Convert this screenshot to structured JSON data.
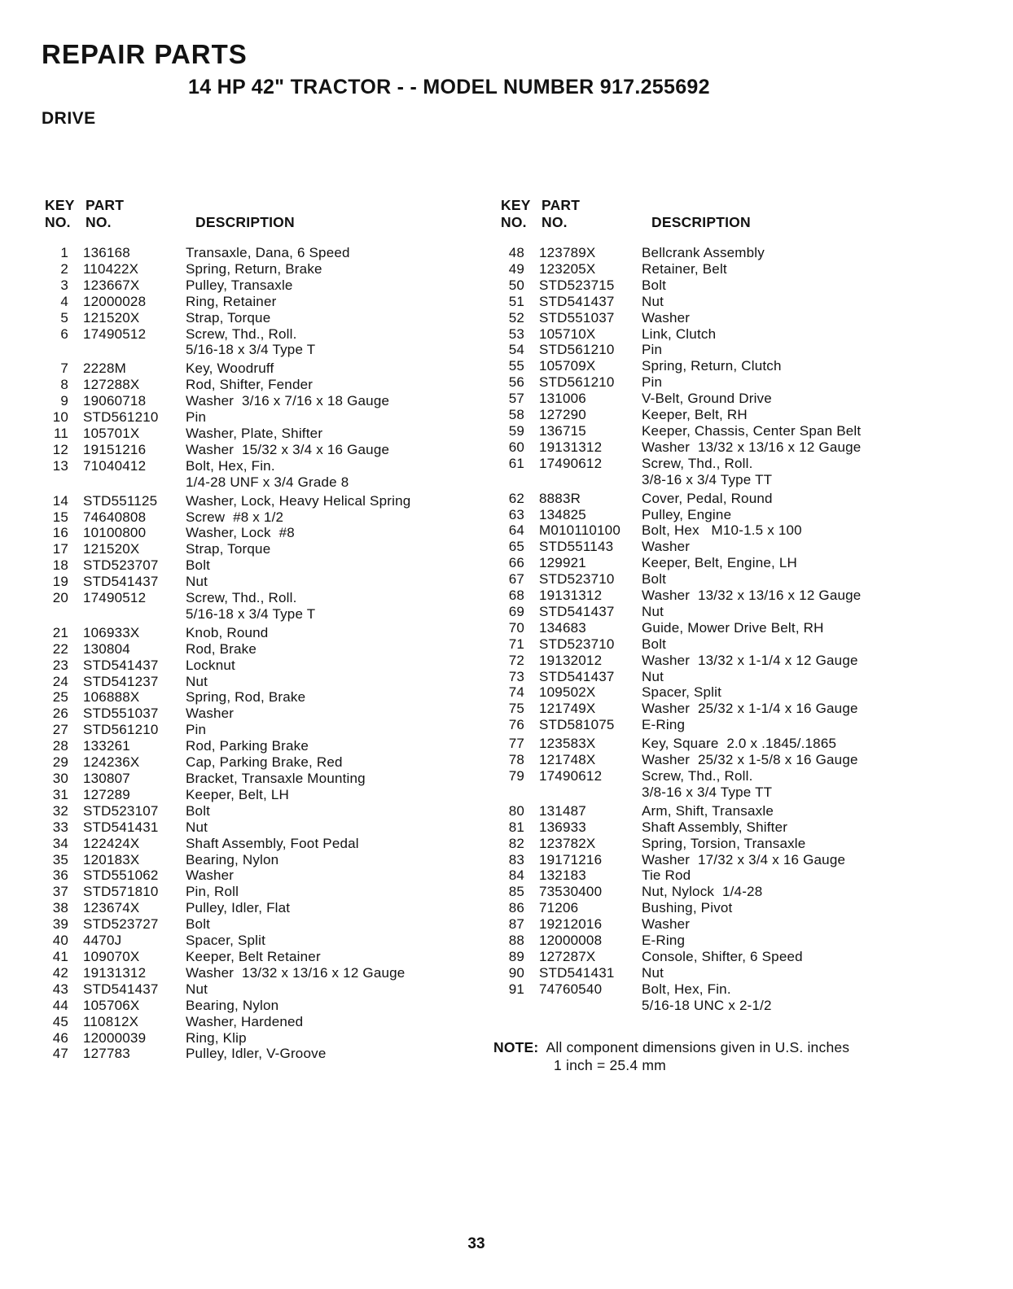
{
  "header": {
    "title": "REPAIR PARTS",
    "subtitle": "14 HP 42\" TRACTOR - - MODEL NUMBER 917.255692",
    "section": "DRIVE"
  },
  "table_headers": {
    "key": "KEY",
    "part": "PART",
    "no": "NO.",
    "no2": "NO.",
    "description": "DESCRIPTION"
  },
  "parts_left": [
    {
      "key": "1",
      "part": "136168",
      "desc": [
        "Transaxle, Dana, 6 Speed"
      ]
    },
    {
      "key": "2",
      "part": "110422X",
      "desc": [
        "Spring, Return, Brake"
      ]
    },
    {
      "key": "3",
      "part": "123667X",
      "desc": [
        "Pulley, Transaxle"
      ]
    },
    {
      "key": "4",
      "part": "12000028",
      "desc": [
        "Ring, Retainer"
      ]
    },
    {
      "key": "5",
      "part": "121520X",
      "desc": [
        "Strap, Torque"
      ]
    },
    {
      "key": "6",
      "part": "17490512",
      "desc": [
        "Screw, Thd., Roll.",
        "5/16-18 x 3/4 Type T"
      ]
    },
    {
      "key": "7",
      "part": "2228M",
      "desc": [
        "Key, Woodruff"
      ],
      "gap": true
    },
    {
      "key": "8",
      "part": "127288X",
      "desc": [
        "Rod, Shifter, Fender"
      ]
    },
    {
      "key": "9",
      "part": "19060718",
      "desc": [
        "Washer  3/16 x 7/16 x 18 Gauge"
      ]
    },
    {
      "key": "10",
      "part": "STD561210",
      "desc": [
        "Pin"
      ]
    },
    {
      "key": "11",
      "part": "105701X",
      "desc": [
        "Washer, Plate, Shifter"
      ]
    },
    {
      "key": "12",
      "part": "19151216",
      "desc": [
        "Washer  15/32 x 3/4 x 16 Gauge"
      ]
    },
    {
      "key": "13",
      "part": "71040412",
      "desc": [
        "Bolt, Hex, Fin.",
        "1/4-28 UNF x 3/4 Grade 8"
      ]
    },
    {
      "key": "14",
      "part": "STD551125",
      "desc": [
        "Washer, Lock, Heavy Helical Spring"
      ],
      "gap": true
    },
    {
      "key": "15",
      "part": "74640808",
      "desc": [
        "Screw  #8 x 1/2"
      ]
    },
    {
      "key": "16",
      "part": "10100800",
      "desc": [
        "Washer, Lock  #8"
      ]
    },
    {
      "key": "17",
      "part": "121520X",
      "desc": [
        "Strap, Torque"
      ]
    },
    {
      "key": "18",
      "part": "STD523707",
      "desc": [
        "Bolt"
      ]
    },
    {
      "key": "19",
      "part": "STD541437",
      "desc": [
        "Nut"
      ]
    },
    {
      "key": "20",
      "part": "17490512",
      "desc": [
        "Screw, Thd., Roll.",
        "5/16-18 x 3/4 Type T"
      ]
    },
    {
      "key": "21",
      "part": "106933X",
      "desc": [
        "Knob, Round"
      ],
      "gap": true
    },
    {
      "key": "22",
      "part": "130804",
      "desc": [
        "Rod, Brake"
      ]
    },
    {
      "key": "23",
      "part": "STD541437",
      "desc": [
        "Locknut"
      ]
    },
    {
      "key": "24",
      "part": "STD541237",
      "desc": [
        "Nut"
      ]
    },
    {
      "key": "25",
      "part": "106888X",
      "desc": [
        "Spring, Rod, Brake"
      ]
    },
    {
      "key": "26",
      "part": "STD551037",
      "desc": [
        "Washer"
      ]
    },
    {
      "key": "27",
      "part": "STD561210",
      "desc": [
        "Pin"
      ]
    },
    {
      "key": "28",
      "part": "133261",
      "desc": [
        "Rod, Parking Brake"
      ]
    },
    {
      "key": "29",
      "part": "124236X",
      "desc": [
        "Cap, Parking Brake, Red"
      ]
    },
    {
      "key": "30",
      "part": "130807",
      "desc": [
        "Bracket, Transaxle Mounting"
      ]
    },
    {
      "key": "31",
      "part": "127289",
      "desc": [
        "Keeper, Belt, LH"
      ]
    },
    {
      "key": "32",
      "part": "STD523107",
      "desc": [
        "Bolt"
      ]
    },
    {
      "key": "33",
      "part": "STD541431",
      "desc": [
        "Nut"
      ]
    },
    {
      "key": "34",
      "part": "122424X",
      "desc": [
        "Shaft Assembly, Foot Pedal"
      ]
    },
    {
      "key": "35",
      "part": "120183X",
      "desc": [
        "Bearing, Nylon"
      ]
    },
    {
      "key": "36",
      "part": "STD551062",
      "desc": [
        "Washer"
      ]
    },
    {
      "key": "37",
      "part": "STD571810",
      "desc": [
        "Pin, Roll"
      ]
    },
    {
      "key": "38",
      "part": "123674X",
      "desc": [
        "Pulley, Idler, Flat"
      ]
    },
    {
      "key": "39",
      "part": "STD523727",
      "desc": [
        "Bolt"
      ]
    },
    {
      "key": "40",
      "part": "4470J",
      "desc": [
        "Spacer, Split"
      ]
    },
    {
      "key": "41",
      "part": "109070X",
      "desc": [
        "Keeper, Belt Retainer"
      ]
    },
    {
      "key": "42",
      "part": "19131312",
      "desc": [
        "Washer  13/32 x 13/16 x 12 Gauge"
      ]
    },
    {
      "key": "43",
      "part": "STD541437",
      "desc": [
        "Nut"
      ]
    },
    {
      "key": "44",
      "part": "105706X",
      "desc": [
        "Bearing, Nylon"
      ]
    },
    {
      "key": "45",
      "part": "110812X",
      "desc": [
        "Washer, Hardened"
      ]
    },
    {
      "key": "46",
      "part": "12000039",
      "desc": [
        "Ring, Klip"
      ]
    },
    {
      "key": "47",
      "part": "127783",
      "desc": [
        "Pulley, Idler, V-Groove"
      ]
    }
  ],
  "parts_right": [
    {
      "key": "48",
      "part": "123789X",
      "desc": [
        "Bellcrank Assembly"
      ]
    },
    {
      "key": "49",
      "part": "123205X",
      "desc": [
        "Retainer, Belt"
      ]
    },
    {
      "key": "50",
      "part": "STD523715",
      "desc": [
        "Bolt"
      ]
    },
    {
      "key": "51",
      "part": "STD541437",
      "desc": [
        "Nut"
      ]
    },
    {
      "key": "52",
      "part": "STD551037",
      "desc": [
        "Washer"
      ]
    },
    {
      "key": "53",
      "part": "105710X",
      "desc": [
        "Link, Clutch"
      ]
    },
    {
      "key": "54",
      "part": "STD561210",
      "desc": [
        "Pin"
      ]
    },
    {
      "key": "55",
      "part": "105709X",
      "desc": [
        "Spring, Return, Clutch"
      ]
    },
    {
      "key": "56",
      "part": "STD561210",
      "desc": [
        "Pin"
      ]
    },
    {
      "key": "57",
      "part": "131006",
      "desc": [
        "V-Belt, Ground Drive"
      ]
    },
    {
      "key": "58",
      "part": "127290",
      "desc": [
        "Keeper, Belt, RH"
      ]
    },
    {
      "key": "59",
      "part": "136715",
      "desc": [
        "Keeper, Chassis, Center Span Belt"
      ]
    },
    {
      "key": "60",
      "part": "19131312",
      "desc": [
        "Washer  13/32 x 13/16 x 12 Gauge"
      ]
    },
    {
      "key": "61",
      "part": "17490612",
      "desc": [
        "Screw, Thd., Roll.",
        "3/8-16 x 3/4 Type TT"
      ]
    },
    {
      "key": "62",
      "part": "8883R",
      "desc": [
        "Cover, Pedal, Round"
      ],
      "gap": true
    },
    {
      "key": "63",
      "part": "134825",
      "desc": [
        "Pulley, Engine"
      ]
    },
    {
      "key": "64",
      "part": "M010110100",
      "desc": [
        "Bolt, Hex   M10-1.5 x 100"
      ]
    },
    {
      "key": "65",
      "part": "STD551143",
      "desc": [
        "Washer"
      ]
    },
    {
      "key": "66",
      "part": "129921",
      "desc": [
        "Keeper, Belt, Engine, LH"
      ]
    },
    {
      "key": "67",
      "part": "STD523710",
      "desc": [
        "Bolt"
      ]
    },
    {
      "key": "68",
      "part": "19131312",
      "desc": [
        "Washer  13/32 x 13/16 x 12 Gauge"
      ]
    },
    {
      "key": "69",
      "part": "STD541437",
      "desc": [
        "Nut"
      ]
    },
    {
      "key": "70",
      "part": "134683",
      "desc": [
        "Guide, Mower Drive Belt, RH"
      ]
    },
    {
      "key": "71",
      "part": "STD523710",
      "desc": [
        "Bolt"
      ]
    },
    {
      "key": "72",
      "part": "19132012",
      "desc": [
        "Washer  13/32 x 1-1/4 x 12 Gauge"
      ]
    },
    {
      "key": "73",
      "part": "STD541437",
      "desc": [
        "Nut"
      ]
    },
    {
      "key": "74",
      "part": "109502X",
      "desc": [
        "Spacer, Split"
      ]
    },
    {
      "key": "75",
      "part": "121749X",
      "desc": [
        "Washer  25/32 x 1-1/4 x 16 Gauge"
      ]
    },
    {
      "key": "76",
      "part": "STD581075",
      "desc": [
        "E-Ring"
      ]
    },
    {
      "key": "77",
      "part": "123583X",
      "desc": [
        "Key, Square  2.0 x .1845/.1865"
      ],
      "gap": true
    },
    {
      "key": "78",
      "part": "121748X",
      "desc": [
        "Washer  25/32 x 1-5/8 x 16 Gauge"
      ]
    },
    {
      "key": "79",
      "part": "17490612",
      "desc": [
        "Screw, Thd., Roll.",
        "3/8-16 x 3/4 Type TT"
      ]
    },
    {
      "key": "80",
      "part": "131487",
      "desc": [
        "Arm, Shift, Transaxle"
      ],
      "gap": true
    },
    {
      "key": "81",
      "part": "136933",
      "desc": [
        "Shaft Assembly, Shifter"
      ]
    },
    {
      "key": "82",
      "part": "123782X",
      "desc": [
        "Spring, Torsion, Transaxle"
      ]
    },
    {
      "key": "83",
      "part": "19171216",
      "desc": [
        "Washer  17/32 x 3/4 x 16 Gauge"
      ]
    },
    {
      "key": "84",
      "part": "132183",
      "desc": [
        "Tie Rod"
      ]
    },
    {
      "key": "85",
      "part": "73530400",
      "desc": [
        "Nut, Nylock  1/4-28"
      ]
    },
    {
      "key": "86",
      "part": "71206",
      "desc": [
        "Bushing, Pivot"
      ]
    },
    {
      "key": "87",
      "part": "19212016",
      "desc": [
        "Washer"
      ]
    },
    {
      "key": "88",
      "part": "12000008",
      "desc": [
        "E-Ring"
      ]
    },
    {
      "key": "89",
      "part": "127287X",
      "desc": [
        "Console, Shifter, 6 Speed"
      ]
    },
    {
      "key": "90",
      "part": "STD541431",
      "desc": [
        "Nut"
      ]
    },
    {
      "key": "91",
      "part": "74760540",
      "desc": [
        "Bolt, Hex, Fin.",
        "5/16-18 UNC x 2-1/2"
      ]
    }
  ],
  "note": {
    "label": "NOTE:",
    "lines": [
      "All component dimensions given in U.S. inches",
      "1 inch = 25.4 mm"
    ]
  },
  "page_number": "33"
}
